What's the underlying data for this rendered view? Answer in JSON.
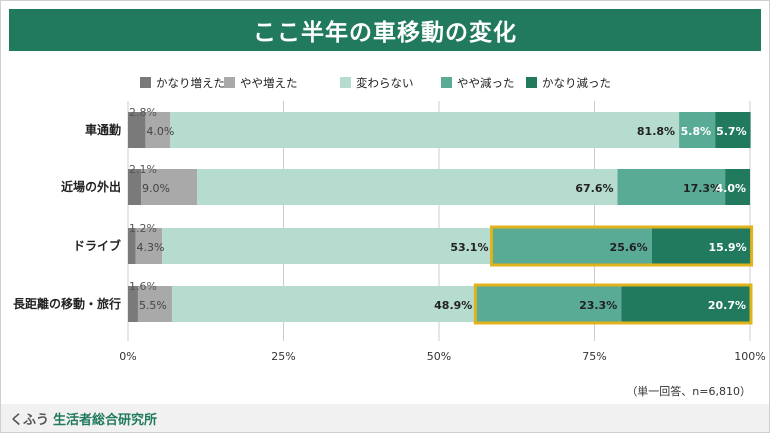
{
  "title": "ここ半年の車移動の変化",
  "note": "（単一回答、n=6,810）",
  "brand": {
    "part1": "くふう",
    "part2": "生活者総合研究所"
  },
  "colors": {
    "title_bg": "#217a5e",
    "series": [
      "#7a7a7a",
      "#a9a9a9",
      "#b5dccf",
      "#5aab95",
      "#217a5e"
    ],
    "highlight": "#e0b21c"
  },
  "chart_data": {
    "type": "bar",
    "orientation": "horizontal",
    "stacked": true,
    "categories": [
      "車通勤",
      "近場の外出",
      "ドライブ",
      "長距離の移動・旅行"
    ],
    "series": [
      {
        "name": "かなり増えた",
        "values": [
          2.8,
          2.1,
          1.2,
          1.6
        ]
      },
      {
        "name": "やや増えた",
        "values": [
          4.0,
          9.0,
          4.3,
          5.5
        ]
      },
      {
        "name": "変わらない",
        "values": [
          81.8,
          67.6,
          53.1,
          48.9
        ]
      },
      {
        "name": "やや減った",
        "values": [
          5.8,
          17.3,
          25.6,
          23.3
        ]
      },
      {
        "name": "かなり減った",
        "values": [
          5.7,
          4.0,
          15.9,
          20.7
        ]
      }
    ],
    "labels": [
      [
        "2.8%",
        "4.0%",
        "81.8%",
        "5.8%",
        "5.7%"
      ],
      [
        "2.1%",
        "9.0%",
        "67.6%",
        "17.3%",
        "4.0%"
      ],
      [
        "1.2%",
        "4.3%",
        "53.1%",
        "25.6%",
        "15.9%"
      ],
      [
        "1.6%",
        "5.5%",
        "48.9%",
        "23.3%",
        "20.7%"
      ]
    ],
    "xlim": [
      0,
      100
    ],
    "ticks": [
      0,
      25,
      50,
      75,
      100
    ],
    "tick_labels": [
      "0%",
      "25%",
      "50%",
      "75%",
      "100%"
    ],
    "legend_position": "top",
    "highlighted_categories": [
      "ドライブ",
      "長距離の移動・旅行"
    ],
    "highlighted_series": [
      "やや減った",
      "かなり減った"
    ]
  }
}
